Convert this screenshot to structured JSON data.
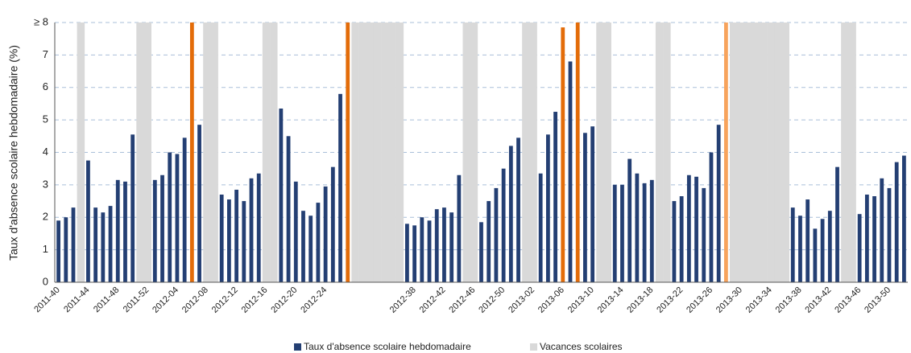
{
  "chart_data": {
    "type": "bar",
    "y_label": "Taux d'absence scolaire hebdomadaire (%)",
    "categories": [
      "2011-40",
      null,
      null,
      null,
      "2011-44",
      null,
      null,
      null,
      "2011-48",
      null,
      null,
      null,
      "2011-52",
      null,
      null,
      null,
      "2012-04",
      null,
      null,
      null,
      "2012-08",
      null,
      null,
      null,
      "2012-12",
      null,
      null,
      null,
      "2012-16",
      null,
      null,
      null,
      "2012-20",
      null,
      null,
      null,
      "2012-24",
      null,
      null,
      null,
      null,
      null,
      null,
      null,
      null,
      null,
      null,
      null,
      "2012-38",
      null,
      null,
      null,
      "2012-42",
      null,
      null,
      null,
      "2012-46",
      null,
      null,
      null,
      "2012-50",
      null,
      null,
      null,
      "2013-02",
      null,
      null,
      null,
      "2013-06",
      null,
      null,
      null,
      "2013-10",
      null,
      null,
      null,
      "2013-14",
      null,
      null,
      null,
      "2013-18",
      null,
      null,
      null,
      "2013-22",
      null,
      null,
      null,
      "2013-26",
      null,
      null,
      null,
      "2013-30",
      null,
      null,
      null,
      "2013-34",
      null,
      null,
      null,
      "2013-38",
      null,
      null,
      null,
      "2013-42",
      null,
      null,
      null,
      "2013-46",
      null,
      null,
      null,
      "2013-50",
      null,
      null
    ],
    "series": [
      {
        "name": "Taux d'absence scolaire hebdomadaire",
        "color": "#243f73",
        "values": [
          1.9,
          2.0,
          2.3,
          null,
          3.75,
          2.3,
          2.15,
          2.35,
          3.15,
          3.1,
          4.55,
          null,
          null,
          3.15,
          3.3,
          4.0,
          3.95,
          4.45,
          8,
          4.85,
          null,
          null,
          2.7,
          2.55,
          2.85,
          2.5,
          3.2,
          3.35,
          null,
          null,
          5.35,
          4.5,
          3.1,
          2.2,
          2.05,
          2.45,
          2.95,
          3.55,
          5.8,
          8,
          null,
          null,
          null,
          null,
          null,
          null,
          null,
          1.8,
          1.75,
          2.0,
          1.9,
          2.25,
          2.3,
          2.15,
          3.3,
          null,
          null,
          1.85,
          2.5,
          2.9,
          3.5,
          4.2,
          4.45,
          null,
          null,
          3.35,
          4.55,
          5.25,
          7.85,
          6.8,
          8,
          4.6,
          4.8,
          null,
          null,
          3.0,
          3.0,
          3.8,
          3.35,
          3.05,
          3.15,
          null,
          null,
          2.5,
          2.65,
          3.3,
          3.25,
          2.9,
          4.0,
          4.85,
          8,
          null,
          null,
          null,
          null,
          null,
          null,
          null,
          null,
          2.3,
          2.05,
          2.55,
          1.65,
          1.95,
          2.2,
          3.55,
          null,
          null,
          2.1,
          2.7,
          2.65,
          3.2,
          2.9,
          3.7,
          3.9
        ],
        "colors": [
          null,
          null,
          null,
          null,
          null,
          null,
          null,
          null,
          null,
          null,
          null,
          null,
          null,
          null,
          null,
          null,
          null,
          null,
          "#e36c09",
          null,
          null,
          null,
          null,
          null,
          null,
          null,
          null,
          null,
          null,
          null,
          null,
          null,
          null,
          null,
          null,
          null,
          null,
          null,
          null,
          "#e36c09",
          null,
          null,
          null,
          null,
          null,
          null,
          null,
          null,
          null,
          null,
          null,
          null,
          null,
          null,
          null,
          null,
          null,
          null,
          null,
          null,
          null,
          null,
          null,
          null,
          null,
          null,
          null,
          null,
          "#e36c09",
          null,
          "#e36c09",
          null,
          null,
          null,
          null,
          null,
          null,
          null,
          null,
          null,
          null,
          null,
          null,
          null,
          null,
          null,
          null,
          null,
          null,
          null,
          "#f7a35c",
          null,
          null,
          null,
          null,
          null,
          null,
          null,
          null,
          null,
          null,
          null,
          null,
          null,
          null,
          null,
          null,
          null,
          null,
          null,
          null,
          null,
          null,
          null,
          null
        ]
      },
      {
        "name": "Vacances scolaires",
        "color": "#d9d9d9",
        "values": [
          null,
          null,
          null,
          8,
          null,
          null,
          null,
          null,
          null,
          null,
          null,
          8,
          8,
          null,
          null,
          null,
          null,
          null,
          null,
          null,
          8,
          8,
          null,
          null,
          null,
          null,
          null,
          null,
          8,
          8,
          null,
          null,
          null,
          null,
          null,
          null,
          null,
          null,
          null,
          null,
          8,
          8,
          8,
          8,
          8,
          8,
          8,
          null,
          null,
          null,
          null,
          null,
          null,
          null,
          null,
          8,
          8,
          null,
          null,
          null,
          null,
          null,
          null,
          8,
          8,
          null,
          null,
          null,
          null,
          null,
          null,
          null,
          null,
          8,
          8,
          null,
          null,
          null,
          null,
          null,
          null,
          8,
          8,
          null,
          null,
          null,
          null,
          null,
          null,
          null,
          null,
          8,
          8,
          8,
          8,
          8,
          8,
          8,
          8,
          null,
          null,
          null,
          null,
          null,
          null,
          null,
          8,
          8,
          null,
          null,
          null,
          null,
          null,
          null,
          null
        ]
      }
    ],
    "ylim": [
      0,
      8
    ],
    "yticks": [
      0,
      1,
      2,
      3,
      4,
      5,
      6,
      7,
      {
        "value": 8,
        "label": "≥ 8"
      }
    ],
    "grid": true
  }
}
